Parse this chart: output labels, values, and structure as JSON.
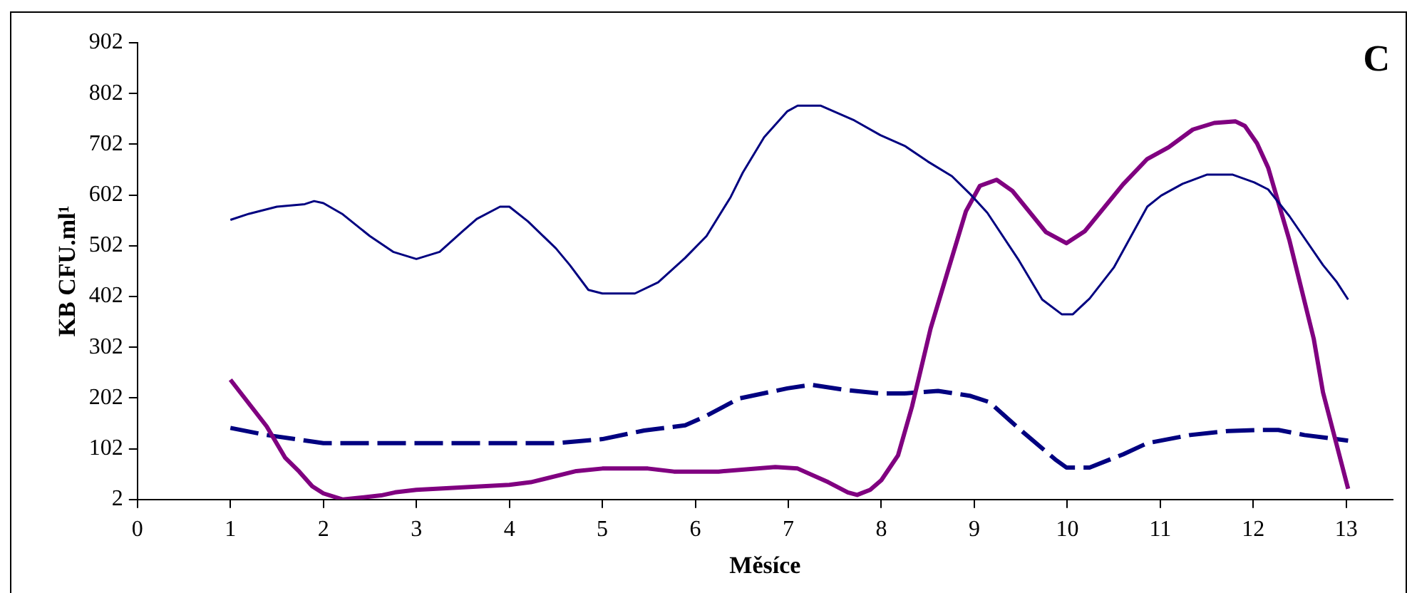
{
  "chart_data": {
    "type": "line",
    "xlabel": "Měsíce",
    "ylabel": "KB CFU.ml¹",
    "annotations": [
      "C"
    ],
    "xlim": [
      0,
      13.5
    ],
    "xticks": [
      0,
      1,
      2,
      3,
      4,
      5,
      6,
      7,
      8,
      9,
      10,
      11,
      12,
      13
    ],
    "ylim": [
      2,
      902
    ],
    "yticks": [
      2,
      102,
      202,
      302,
      402,
      502,
      602,
      702,
      802,
      902
    ],
    "marker": "none",
    "series": [
      {
        "color": "#000080",
        "line_style": "solid",
        "x": [
          1,
          1.2,
          1.5,
          1.8,
          1.9,
          2,
          2.2,
          2.5,
          2.75,
          3,
          3.25,
          3.5,
          3.65,
          3.9,
          4,
          4.2,
          4.5,
          4.65,
          4.85,
          5,
          5.35,
          5.6,
          5.89,
          6.12,
          6.38,
          6.51,
          6.74,
          6.99,
          7.1,
          7.35,
          7.71,
          7.99,
          8.25,
          8.5,
          8.76,
          8.96,
          9.14,
          9.48,
          9.73,
          9.94,
          10.06,
          10.24,
          10.5,
          10.86,
          11.01,
          11.24,
          11.5,
          11.78,
          12.01,
          12.16,
          12.39,
          12.75,
          12.9,
          13.02
        ],
        "values": [
          553,
          565,
          579,
          584,
          590,
          586,
          565,
          521,
          490,
          476,
          490,
          531,
          555,
          579,
          579,
          550,
          497,
          464,
          415,
          408,
          408,
          430,
          478,
          521,
          598,
          646,
          716,
          767,
          778,
          778,
          749,
          720,
          699,
          668,
          639,
          603,
          567,
          473,
          396,
          367,
          367,
          398,
          459,
          579,
          601,
          624,
          642,
          642,
          627,
          613,
          560,
          464,
          430,
          396
        ]
      },
      {
        "color": "#800080",
        "line_style": "solid",
        "x": [
          1,
          1.39,
          1.59,
          1.74,
          1.88,
          2,
          2.21,
          2.62,
          2.77,
          3,
          4,
          4.23,
          4.72,
          5,
          5.49,
          5.77,
          6.25,
          6.86,
          7.1,
          7.43,
          7.64,
          7.74,
          7.88,
          8,
          8.18,
          8.33,
          8.53,
          8.71,
          8.91,
          9.06,
          9.24,
          9.41,
          9.77,
          9.99,
          10.19,
          10.6,
          10.86,
          11.09,
          11.35,
          11.58,
          11.81,
          11.91,
          12.04,
          12.16,
          12.39,
          12.65,
          12.75,
          13.02
        ],
        "values": [
          238,
          146,
          84,
          57,
          28,
          14,
          2,
          10,
          16,
          21,
          31,
          36,
          58,
          63,
          63,
          57,
          57,
          66,
          63,
          36,
          16,
          11,
          21,
          40,
          89,
          185,
          339,
          449,
          570,
          620,
          632,
          610,
          529,
          507,
          531,
          623,
          673,
          696,
          731,
          744,
          747,
          738,
          704,
          656,
          512,
          319,
          213,
          23
        ]
      },
      {
        "color": "#000080",
        "line_style": "dashed",
        "x": [
          1,
          1.39,
          2,
          4.51,
          5,
          5.45,
          5.89,
          6.12,
          6.47,
          6.99,
          7.25,
          7.61,
          7.99,
          8.25,
          8.61,
          8.96,
          9.16,
          9.51,
          9.87,
          9.99,
          10.24,
          10.6,
          10.86,
          11.32,
          11.73,
          12.04,
          12.27,
          12.55,
          13.02
        ],
        "values": [
          143,
          129,
          113,
          113,
          121,
          138,
          148,
          167,
          201,
          221,
          228,
          218,
          211,
          211,
          216,
          206,
          194,
          137,
          81,
          65,
          65,
          91,
          113,
          129,
          137,
          139,
          139,
          129,
          118
        ]
      }
    ]
  }
}
